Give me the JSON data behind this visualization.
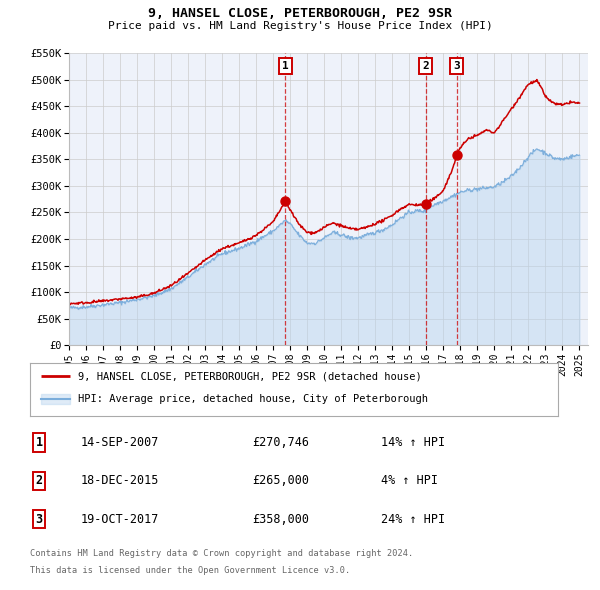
{
  "title": "9, HANSEL CLOSE, PETERBOROUGH, PE2 9SR",
  "subtitle": "Price paid vs. HM Land Registry's House Price Index (HPI)",
  "hpi_label": "HPI: Average price, detached house, City of Peterborough",
  "price_label": "9, HANSEL CLOSE, PETERBOROUGH, PE2 9SR (detached house)",
  "price_color": "#cc0000",
  "hpi_color": "#7aaddb",
  "hpi_fill_color": "#b8d4ee",
  "background_color": "#ffffff",
  "plot_bg_color": "#eef2fa",
  "ylim": [
    0,
    550000
  ],
  "yticks": [
    0,
    50000,
    100000,
    150000,
    200000,
    250000,
    300000,
    350000,
    400000,
    450000,
    500000,
    550000
  ],
  "ytick_labels": [
    "£0",
    "£50K",
    "£100K",
    "£150K",
    "£200K",
    "£250K",
    "£300K",
    "£350K",
    "£400K",
    "£450K",
    "£500K",
    "£550K"
  ],
  "xlim_start": 1995.0,
  "xlim_end": 2025.5,
  "xtick_years": [
    1995,
    1996,
    1997,
    1998,
    1999,
    2000,
    2001,
    2002,
    2003,
    2004,
    2005,
    2006,
    2007,
    2008,
    2009,
    2010,
    2011,
    2012,
    2013,
    2014,
    2015,
    2016,
    2017,
    2018,
    2019,
    2020,
    2021,
    2022,
    2023,
    2024,
    2025
  ],
  "transactions": [
    {
      "num": 1,
      "date": "14-SEP-2007",
      "price": 270746,
      "price_str": "£270,746",
      "hpi_pct": "14%",
      "x": 2007.71
    },
    {
      "num": 2,
      "date": "18-DEC-2015",
      "price": 265000,
      "price_str": "£265,000",
      "hpi_pct": "4%",
      "x": 2015.96
    },
    {
      "num": 3,
      "date": "19-OCT-2017",
      "price": 358000,
      "price_str": "£358,000",
      "hpi_pct": "24%",
      "x": 2017.8
    }
  ],
  "footer_line1": "Contains HM Land Registry data © Crown copyright and database right 2024.",
  "footer_line2": "This data is licensed under the Open Government Licence v3.0.",
  "grid_color": "#cccccc"
}
